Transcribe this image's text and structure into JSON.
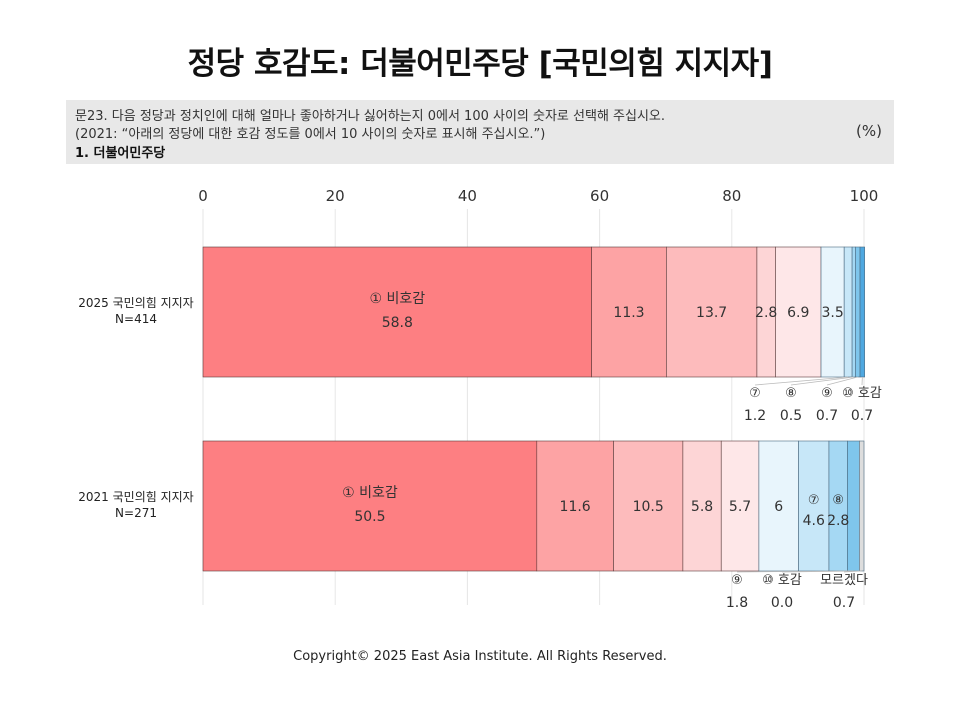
{
  "title": "정당 호감도: 더불어민주당 [국민의힘 지지자]",
  "question": {
    "line1": "문23. 다음 정당과 정치인에 대해 얼마나 좋아하거나 싫어하는지 0에서 100 사이의 숫자로 선택해 주십시오.",
    "line2": "(2021: “아래의 정당에 대한 호감 정도를 0에서 10 사이의 숫자로 표시해 주십시오.”)",
    "line3": "1. 더불어민주당",
    "unit": "(%)"
  },
  "footer": "Copyright© 2025 East Asia Institute. All Rights Reserved.",
  "colors": {
    "seg": [
      "#fd7f82",
      "#fda3a4",
      "#fdbbbc",
      "#fdd5d6",
      "#fee7e8",
      "#e8f5fc",
      "#c7e7f8",
      "#a5d8f3",
      "#7fc6ec",
      "#4fa8e0"
    ]
  },
  "chart_data": {
    "type": "bar",
    "orientation": "horizontal",
    "stacked": true,
    "xlim": [
      0,
      100
    ],
    "xticks": [
      "0",
      "20",
      "40",
      "60",
      "80",
      "100"
    ],
    "categories": [
      {
        "label1": "2025 국민의힘 지지자",
        "label2": "N=414"
      },
      {
        "label1": "2021 국민의힘 지지자",
        "label2": "N=271"
      }
    ],
    "rows": [
      {
        "values": [
          58.8,
          11.3,
          13.7,
          2.8,
          6.9,
          3.5,
          1.2,
          0.5,
          0.7,
          0.7
        ],
        "inside": [
          {
            "seg": 0,
            "name": "① 비호감",
            "value": "58.8"
          },
          {
            "seg": 1,
            "value": "11.3"
          },
          {
            "seg": 2,
            "value": "13.7"
          },
          {
            "seg": 3,
            "value": "2.8"
          },
          {
            "seg": 4,
            "value": "6.9"
          },
          {
            "seg": 5,
            "value": "3.5"
          }
        ],
        "outside": [
          {
            "seg": 6,
            "name": "⑦",
            "value": "1.2"
          },
          {
            "seg": 7,
            "name": "⑧",
            "value": "0.5"
          },
          {
            "seg": 8,
            "name": "⑨",
            "value": "0.7"
          },
          {
            "seg": 9,
            "name": "⑩ 호감",
            "value": "0.7"
          }
        ]
      },
      {
        "values": [
          50.5,
          11.6,
          10.5,
          5.8,
          5.7,
          6.0,
          4.6,
          2.8,
          1.8,
          0.0,
          0.7
        ],
        "inside": [
          {
            "seg": 0,
            "name": "① 비호감",
            "value": "50.5"
          },
          {
            "seg": 1,
            "value": "11.6"
          },
          {
            "seg": 2,
            "value": "10.5"
          },
          {
            "seg": 3,
            "value": "5.8"
          },
          {
            "seg": 4,
            "value": "5.7"
          },
          {
            "seg": 5,
            "value": "6"
          },
          {
            "seg": 6,
            "name": "⑦",
            "value": "4.6"
          },
          {
            "seg": 7,
            "name": "⑧",
            "value": "2.8"
          }
        ],
        "outside": [
          {
            "seg": 8,
            "name": "⑨",
            "value": "1.8"
          },
          {
            "seg": 9,
            "name": "⑩ 호감",
            "value": "0.0"
          },
          {
            "seg": 10,
            "name": "모르겠다",
            "value": "0.7"
          }
        ]
      }
    ]
  }
}
